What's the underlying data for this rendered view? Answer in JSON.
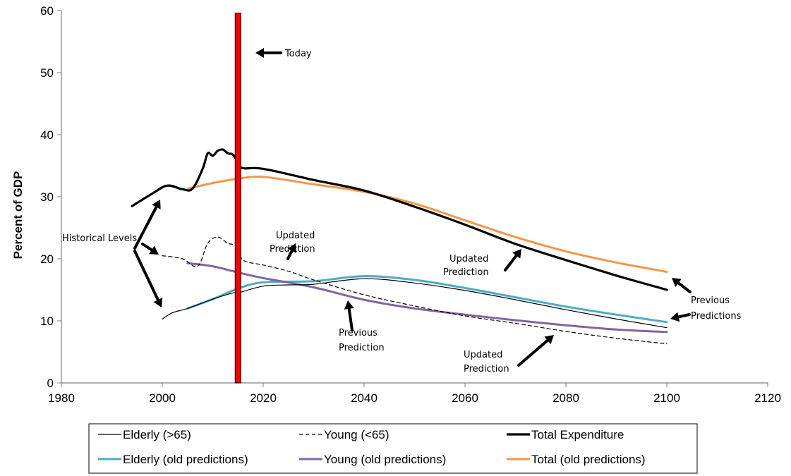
{
  "chart_data": {
    "type": "line",
    "title": "",
    "xlabel": "",
    "ylabel": "Percent of GDP",
    "xlim": [
      1980,
      2120
    ],
    "ylim": [
      0,
      60
    ],
    "x_ticks": [
      1980,
      2000,
      2020,
      2040,
      2060,
      2080,
      2100,
      2120
    ],
    "y_ticks": [
      0,
      10,
      20,
      30,
      40,
      50,
      60
    ],
    "grid": false,
    "legend_position": "bottom",
    "today_marker": {
      "x": 2015,
      "label": "Today",
      "color": "#ff0000"
    },
    "series": [
      {
        "name": "Elderly (>65)",
        "color": "#000000",
        "style": "solid-thin",
        "points": [
          [
            2000,
            10.3
          ],
          [
            2002,
            11.3
          ],
          [
            2005,
            12.0
          ],
          [
            2010,
            13.5
          ],
          [
            2014,
            14.5
          ],
          [
            2015,
            14.5
          ],
          [
            2020,
            15.6
          ],
          [
            2025,
            15.8
          ],
          [
            2030,
            15.9
          ],
          [
            2040,
            16.8
          ],
          [
            2050,
            16.1
          ],
          [
            2060,
            14.9
          ],
          [
            2070,
            13.4
          ],
          [
            2080,
            11.8
          ],
          [
            2090,
            10.3
          ],
          [
            2100,
            8.9
          ]
        ]
      },
      {
        "name": "Young (<65)",
        "color": "#000000",
        "style": "dashed",
        "points": [
          [
            2000,
            20.5
          ],
          [
            2004,
            20.0
          ],
          [
            2007,
            18.8
          ],
          [
            2009,
            22.5
          ],
          [
            2011,
            23.5
          ],
          [
            2013,
            22.5
          ],
          [
            2015,
            22.0
          ],
          [
            2016,
            19.8
          ],
          [
            2020,
            19.0
          ],
          [
            2025,
            18.0
          ],
          [
            2030,
            16.6
          ],
          [
            2040,
            14.2
          ],
          [
            2050,
            12.4
          ],
          [
            2060,
            10.8
          ],
          [
            2070,
            9.6
          ],
          [
            2080,
            8.3
          ],
          [
            2090,
            7.2
          ],
          [
            2100,
            6.3
          ]
        ]
      },
      {
        "name": "Total Expenditure",
        "color": "#000000",
        "style": "solid-thick",
        "points": [
          [
            1994,
            28.5
          ],
          [
            1998,
            30.5
          ],
          [
            2001,
            31.8
          ],
          [
            2004,
            31.2
          ],
          [
            2006,
            31.3
          ],
          [
            2008,
            34.5
          ],
          [
            2009,
            37.0
          ],
          [
            2010,
            36.6
          ],
          [
            2011,
            37.4
          ],
          [
            2012,
            37.6
          ],
          [
            2013,
            37.0
          ],
          [
            2014,
            36.8
          ],
          [
            2015,
            35.5
          ],
          [
            2016,
            34.6
          ],
          [
            2020,
            34.5
          ],
          [
            2030,
            32.7
          ],
          [
            2040,
            31.0
          ],
          [
            2050,
            28.4
          ],
          [
            2060,
            25.5
          ],
          [
            2070,
            22.4
          ],
          [
            2080,
            19.8
          ],
          [
            2090,
            17.3
          ],
          [
            2100,
            15.0
          ]
        ]
      },
      {
        "name": "Elderly (old predictions)",
        "color": "#4bacc6",
        "style": "solid",
        "points": [
          [
            2005,
            12.0
          ],
          [
            2010,
            13.5
          ],
          [
            2015,
            15.2
          ],
          [
            2020,
            16.2
          ],
          [
            2030,
            16.4
          ],
          [
            2040,
            17.2
          ],
          [
            2050,
            16.6
          ],
          [
            2060,
            15.3
          ],
          [
            2070,
            13.8
          ],
          [
            2080,
            12.3
          ],
          [
            2090,
            11.0
          ],
          [
            2100,
            9.8
          ]
        ]
      },
      {
        "name": "Young (old predictions)",
        "color": "#8064a2",
        "style": "solid",
        "points": [
          [
            2005,
            19.3
          ],
          [
            2010,
            18.8
          ],
          [
            2015,
            17.8
          ],
          [
            2020,
            16.9
          ],
          [
            2030,
            15.4
          ],
          [
            2040,
            13.4
          ],
          [
            2050,
            12.0
          ],
          [
            2060,
            11.0
          ],
          [
            2070,
            10.1
          ],
          [
            2080,
            9.3
          ],
          [
            2090,
            8.6
          ],
          [
            2100,
            8.2
          ]
        ]
      },
      {
        "name": "Total (old predictions)",
        "color": "#f79646",
        "style": "solid",
        "points": [
          [
            2005,
            31.3
          ],
          [
            2010,
            32.2
          ],
          [
            2015,
            32.9
          ],
          [
            2020,
            33.2
          ],
          [
            2030,
            32.0
          ],
          [
            2040,
            30.8
          ],
          [
            2050,
            28.9
          ],
          [
            2060,
            26.2
          ],
          [
            2070,
            23.5
          ],
          [
            2080,
            21.2
          ],
          [
            2090,
            19.4
          ],
          [
            2100,
            17.9
          ]
        ]
      }
    ],
    "annotations": [
      {
        "id": "today",
        "lines": [
          "Today"
        ]
      },
      {
        "id": "historical",
        "lines": [
          "Historical Levels"
        ]
      },
      {
        "id": "updated_young",
        "lines": [
          "Updated",
          "Prediction"
        ]
      },
      {
        "id": "updated_total",
        "lines": [
          "Updated",
          "Prediction"
        ]
      },
      {
        "id": "previous_young",
        "lines": [
          "Previous",
          "Prediction"
        ]
      },
      {
        "id": "updated_elderly",
        "lines": [
          "Updated",
          "Prediction"
        ]
      },
      {
        "id": "previous_right",
        "lines": [
          "Previous",
          "Predictions"
        ]
      }
    ]
  }
}
